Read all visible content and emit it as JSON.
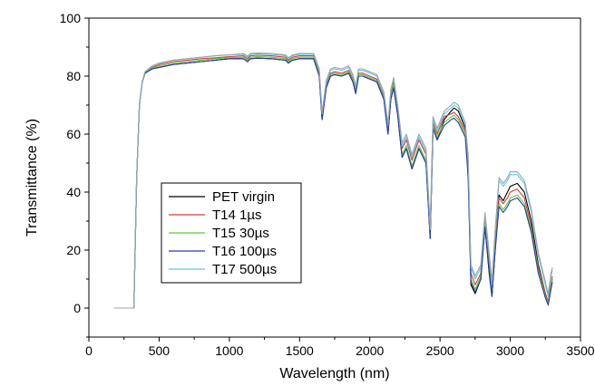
{
  "chart_data": {
    "type": "line",
    "title": "",
    "xlabel": "Wavelength (nm)",
    "ylabel": "Transmittance (%)",
    "xlim": [
      0,
      3500
    ],
    "ylim": [
      -10,
      100
    ],
    "xticks": [
      0,
      500,
      1000,
      1500,
      2000,
      2500,
      3000,
      3500
    ],
    "yticks": [
      0,
      20,
      40,
      60,
      80,
      100
    ],
    "legend_position": "lower-left",
    "grid": false,
    "x": [
      180,
      320,
      340,
      360,
      380,
      400,
      450,
      500,
      600,
      700,
      800,
      900,
      1000,
      1100,
      1130,
      1150,
      1200,
      1300,
      1400,
      1420,
      1450,
      1500,
      1600,
      1640,
      1660,
      1690,
      1720,
      1750,
      1800,
      1850,
      1880,
      1900,
      1920,
      1950,
      2000,
      2050,
      2100,
      2130,
      2150,
      2170,
      2200,
      2230,
      2260,
      2300,
      2350,
      2400,
      2430,
      2450,
      2480,
      2530,
      2580,
      2600,
      2630,
      2680,
      2700,
      2720,
      2750,
      2790,
      2820,
      2850,
      2870,
      2890,
      2920,
      2950,
      2980,
      3000,
      3050,
      3100,
      3150,
      3200,
      3250,
      3270,
      3290,
      3300
    ],
    "series": [
      {
        "name": "PET virgin",
        "color": "#000000",
        "values": [
          0,
          0,
          45,
          70,
          78,
          81,
          82.5,
          83,
          84,
          84.5,
          85,
          85.5,
          86,
          86,
          85,
          86,
          86.2,
          86,
          85.5,
          84.5,
          85.5,
          86,
          86,
          80,
          65,
          76,
          80,
          80.5,
          80,
          81,
          78,
          74,
          80,
          80,
          79,
          78,
          72,
          60,
          72,
          76,
          66,
          52,
          55,
          48,
          55,
          50,
          24,
          62,
          58,
          65,
          68,
          69,
          68,
          62,
          50,
          8,
          5,
          10,
          28,
          12,
          4,
          18,
          39,
          37,
          40,
          42,
          43,
          40,
          30,
          15,
          5,
          2,
          8,
          10
        ]
      },
      {
        "name": "T14 1µs",
        "color": "#d23c3c",
        "values": [
          0,
          0,
          45,
          70,
          78,
          81,
          83,
          84,
          85,
          85.5,
          86,
          86.3,
          86.7,
          87,
          86,
          87,
          87.2,
          87,
          86.5,
          85.5,
          86.5,
          87,
          87,
          81,
          66,
          77,
          81,
          81.5,
          81,
          82,
          79,
          75,
          81,
          81,
          80,
          79,
          73,
          62,
          74,
          78,
          68,
          55,
          58,
          51,
          58,
          53,
          26,
          64,
          60,
          66,
          67,
          67.5,
          66,
          61,
          48,
          12,
          8,
          12,
          30,
          16,
          6,
          21,
          38,
          36,
          38,
          40,
          41,
          38,
          28,
          14,
          5,
          2,
          8,
          11
        ]
      },
      {
        "name": "T15 30µs",
        "color": "#5ec93c",
        "values": [
          0,
          0,
          45,
          70,
          78,
          81,
          82.8,
          83.5,
          84.5,
          85,
          85.5,
          86,
          86.3,
          86.5,
          85.5,
          86.5,
          86.7,
          86.5,
          86,
          85,
          86,
          86.5,
          86.5,
          80.5,
          65.5,
          76.5,
          80.5,
          81,
          80.5,
          81.5,
          78.5,
          74.5,
          80.5,
          80.5,
          79.5,
          78.5,
          72.5,
          61,
          73,
          77,
          67,
          53,
          56,
          49,
          56,
          51,
          25,
          63,
          59,
          64,
          66,
          66.5,
          65,
          60,
          47,
          10,
          6.5,
          11,
          29,
          14,
          5,
          19,
          36,
          34,
          36,
          38,
          39,
          36,
          27,
          13,
          4,
          1.5,
          7,
          10
        ]
      },
      {
        "name": "T16 100µs",
        "color": "#2e3aa0",
        "values": [
          0,
          0,
          45,
          70,
          78,
          81,
          82.5,
          83,
          84,
          84.5,
          85,
          85.5,
          86,
          86,
          85,
          86,
          86.2,
          86,
          85.5,
          84.5,
          85.5,
          86,
          86,
          80,
          65,
          76,
          80,
          80.5,
          80,
          81,
          78,
          74,
          80,
          80,
          79,
          78,
          72,
          60,
          72,
          76,
          66,
          52,
          55,
          48,
          55,
          50,
          24,
          62,
          58,
          63,
          65,
          65.5,
          64,
          59,
          45,
          9,
          5.5,
          10,
          28,
          13,
          4,
          18,
          35,
          33,
          35,
          37,
          38,
          35,
          26,
          12,
          3.5,
          1,
          6.5,
          9
        ]
      },
      {
        "name": "T17 500µs",
        "color": "#5cc8e6",
        "values": [
          0,
          0,
          45,
          70,
          78,
          81.5,
          83.5,
          84.5,
          85.5,
          86,
          86.5,
          87,
          87.3,
          87.5,
          86.5,
          87.5,
          87.7,
          87.5,
          87,
          86,
          87,
          87.5,
          87.5,
          82,
          67,
          78,
          82,
          82.5,
          82,
          83,
          80,
          76,
          82,
          82,
          81,
          80,
          74,
          63,
          75,
          79,
          69,
          56,
          59,
          52,
          59,
          54,
          27,
          65,
          61,
          67,
          69,
          70,
          69,
          63,
          52,
          14,
          10,
          14,
          32,
          18,
          8,
          24,
          44,
          42,
          44,
          46,
          46,
          43,
          33,
          18,
          8,
          4,
          11,
          13
        ]
      },
      {
        "name": "",
        "color": "#9aa3aa",
        "values": [
          0,
          0,
          45,
          70,
          78,
          81.5,
          83.5,
          84.5,
          85.5,
          86,
          86.5,
          87,
          87.3,
          87.8,
          86.8,
          87.8,
          88,
          87.8,
          87.3,
          86.3,
          87.3,
          87.8,
          87.8,
          82.5,
          67.5,
          78.5,
          82.5,
          83,
          82.5,
          83.5,
          80.5,
          76.5,
          82.5,
          82.5,
          81.5,
          80.5,
          74.5,
          63.5,
          75.5,
          79.5,
          69.5,
          57,
          60,
          53,
          60,
          55,
          28,
          66,
          62,
          68,
          70,
          71,
          70,
          64,
          53,
          15,
          11,
          15,
          33,
          19,
          9,
          25,
          45,
          43,
          45,
          47,
          47,
          44,
          34,
          19,
          9,
          5,
          12,
          14
        ]
      }
    ],
    "legend": [
      {
        "label": "PET virgin",
        "color": "#000000"
      },
      {
        "label": "T14 1µs",
        "color": "#d23c3c"
      },
      {
        "label": "T15 30µs",
        "color": "#5ec93c"
      },
      {
        "label": "T16 100µs",
        "color": "#2e3aa0"
      },
      {
        "label": "T17 500µs",
        "color": "#5cc8e6"
      }
    ]
  }
}
